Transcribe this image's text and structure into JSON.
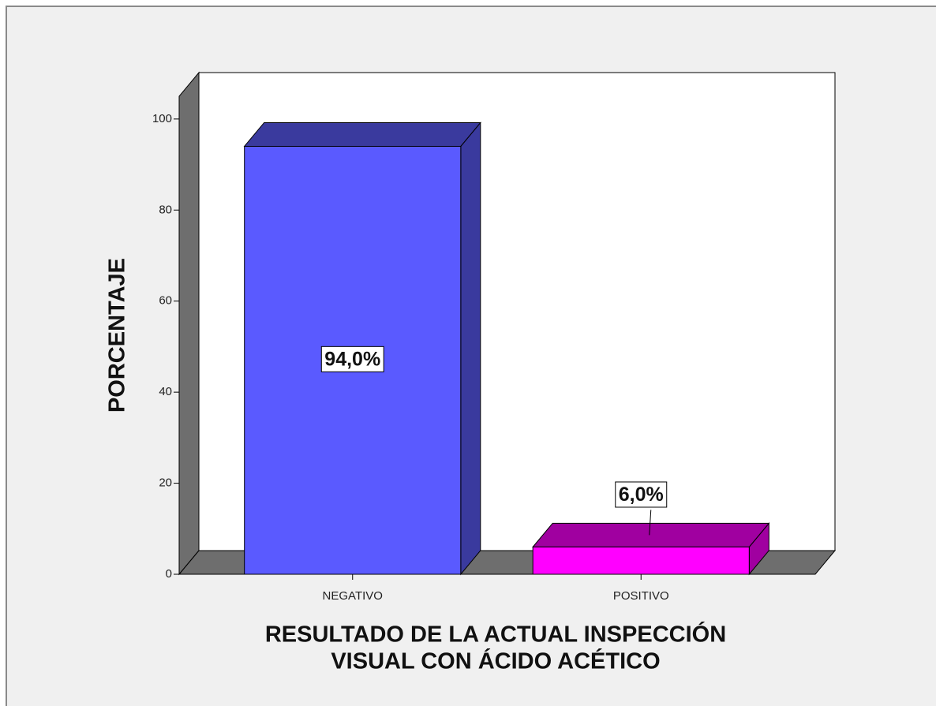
{
  "chart_data": {
    "type": "bar3d",
    "ylabel": "PORCENTAJE",
    "xlabel": [
      "RESULTADO DE LA ACTUAL INSPECCIÓN",
      "VISUAL CON ÁCIDO ACÉTICO"
    ],
    "categories": [
      "NEGATIVO",
      "POSITIVO"
    ],
    "values": [
      94.0,
      6.0
    ],
    "value_labels": [
      "94,0%",
      "6,0%"
    ],
    "colors": [
      "#5a5aff",
      "#ff00ff"
    ],
    "shade_colors": [
      "#3a3a9e",
      "#a000a0"
    ],
    "ylim": [
      0,
      105
    ],
    "yticks": [
      0,
      20,
      40,
      60,
      80,
      100
    ]
  }
}
